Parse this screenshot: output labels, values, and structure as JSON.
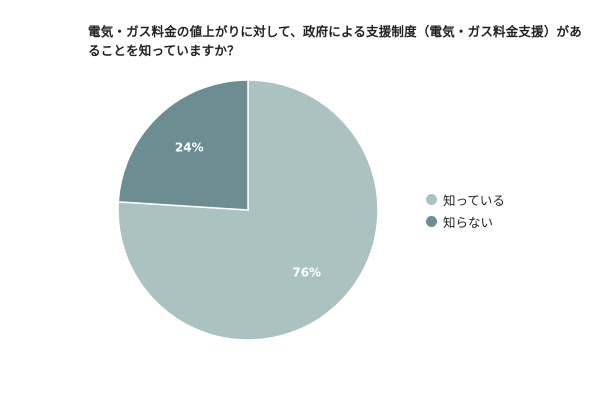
{
  "chart_data": {
    "type": "pie",
    "title": "電気・ガス料金の値上がりに対して、政府による支援制度（電気・ガス料金支援）があることを知っていますか？",
    "slices": [
      {
        "label": "知っている",
        "value": 76,
        "data_label": "76%",
        "color": "#aac2c2"
      },
      {
        "label": "知らない",
        "value": 24,
        "data_label": "24%",
        "color": "#6c8e92"
      }
    ],
    "legend_position": "right"
  }
}
